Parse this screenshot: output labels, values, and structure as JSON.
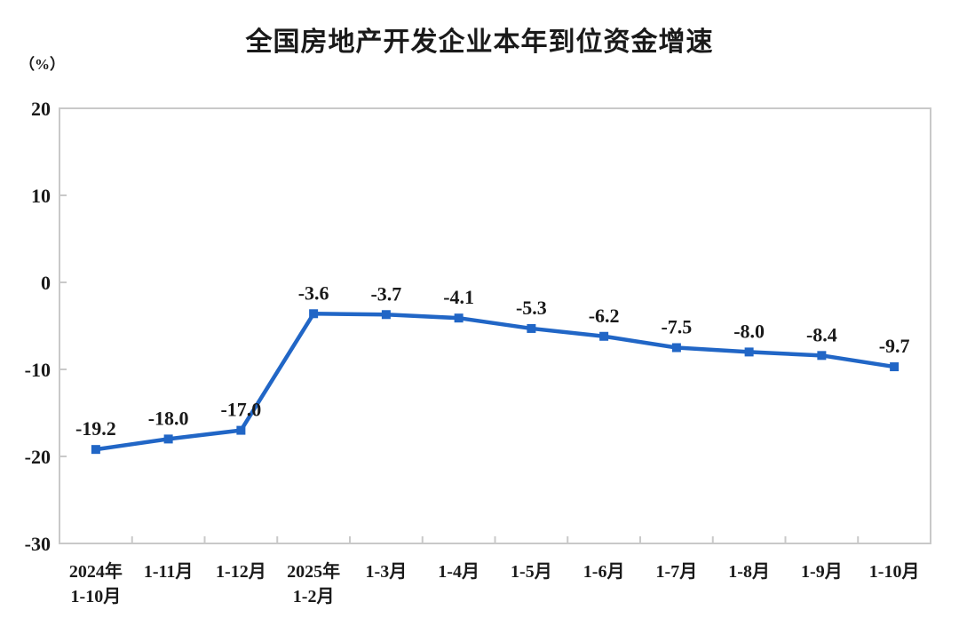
{
  "page": {
    "background_color": "#ffffff"
  },
  "chart_data": {
    "type": "line",
    "title": "全国房地产开发企业本年到位资金增速",
    "unit_label": "（%）",
    "categories": [
      "2024年\n1-10月",
      "1-11月",
      "1-12月",
      "2025年\n1-2月",
      "1-3月",
      "1-4月",
      "1-5月",
      "1-6月",
      "1-7月",
      "1-8月",
      "1-9月",
      "1-10月"
    ],
    "values": [
      -19.2,
      -18.0,
      -17.0,
      -3.6,
      -3.7,
      -4.1,
      -5.3,
      -6.2,
      -7.5,
      -8.0,
      -8.4,
      -9.7
    ],
    "data_labels": [
      "-19.2",
      "-18.0",
      "-17.0",
      "-3.6",
      "-3.7",
      "-4.1",
      "-5.3",
      "-6.2",
      "-7.5",
      "-8.0",
      "-8.4",
      "-9.7"
    ],
    "y_ticks": [
      20,
      10,
      0,
      -10,
      -20,
      -30
    ],
    "ylim": [
      -30,
      20
    ],
    "grid": false,
    "legend": "none",
    "marker": "square",
    "line_color": "#2166c6",
    "axis_color": "#c9c9c9",
    "text_color": "#1a1a1a"
  }
}
